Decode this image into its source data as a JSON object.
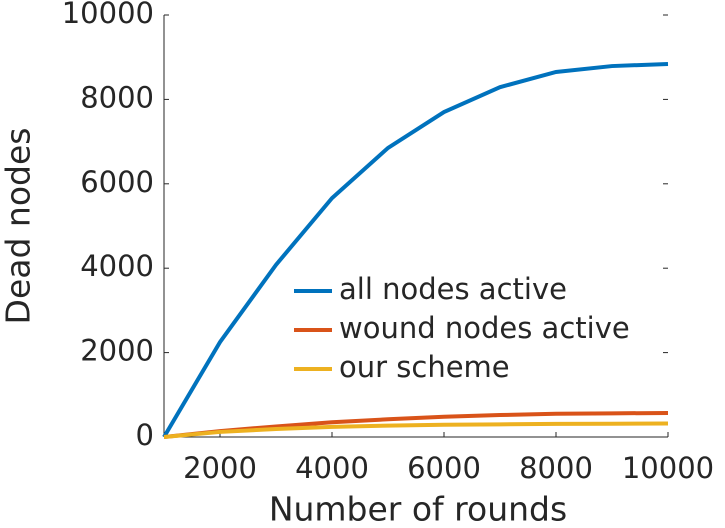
{
  "chart_data": {
    "type": "line",
    "x_label": "Number of rounds",
    "y_label": "Dead nodes",
    "x": [
      1000,
      2000,
      3000,
      4000,
      5000,
      6000,
      7000,
      8000,
      9000,
      10000
    ],
    "series": [
      {
        "name": "all nodes active",
        "color": "#0072bd",
        "values": [
          0,
          2250,
          4080,
          5660,
          6850,
          7700,
          8290,
          8650,
          8790,
          8840
        ]
      },
      {
        "name": "wound nodes active",
        "color": "#d95319",
        "values": [
          0,
          140,
          250,
          350,
          420,
          480,
          520,
          550,
          560,
          570
        ]
      },
      {
        "name": "our scheme",
        "color": "#edb120",
        "values": [
          0,
          120,
          190,
          240,
          270,
          290,
          300,
          310,
          315,
          320
        ]
      }
    ],
    "xlim": [
      1000,
      10000
    ],
    "xticks": [
      2000,
      4000,
      6000,
      8000,
      10000
    ],
    "ylim": [
      0,
      10000
    ],
    "yticks": [
      0,
      2000,
      4000,
      6000,
      8000,
      10000
    ]
  }
}
